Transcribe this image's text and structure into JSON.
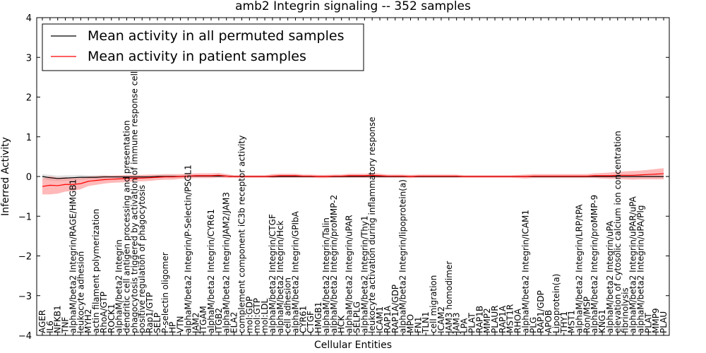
{
  "chart_data": {
    "type": "line",
    "title": "amb2 Integrin signaling -- 352 samples",
    "xlabel": "Cellular Entities",
    "ylabel": "Inferred Activity",
    "ylim": [
      -4,
      4
    ],
    "yticks": [
      "4",
      "3",
      "2",
      "1",
      "0",
      "−1",
      "−2",
      "−3",
      "−4"
    ],
    "grid": false,
    "legend_position": "top-left",
    "colors": {
      "permuted": "#000000",
      "patient": "#ff0000",
      "permuted_band": "#cccccc",
      "patient_band": "#ff8080"
    },
    "categories": [
      "AGER",
      "IL6",
      "NFKB1",
      "TNF",
      "alphaM/beta2 Integrin/RAGE/HMGB1",
      "leukocyte adhesion",
      "MYH2",
      "actin filament polymerization",
      "RhoA/GTP",
      "ROCK1",
      "alphaM/beta2 Integrin",
      "dendritic cell antigen processing and presentation",
      "phagocytosis triggered by activation of immune response cell surface",
      "positive regulation of phagocytosis",
      "Rap1/GTP",
      "SELP",
      "P-selectin oligomer",
      "HP",
      "VTN",
      "alphaM/beta2 Integrin/P-Selectin/PSGL1",
      "JAM2",
      "ITGAM",
      "alphaM/beta2 Integrin/CYR61",
      "ITGB2",
      "alphaM/beta2 Integrin/JAM2/JAM3",
      "ELA2",
      "complement component iC3b receptor activity",
      "mol:GDP",
      "mol:GTP",
      "mol:LDL",
      "alphaM/beta2 Integrin/CTGF",
      "alphaM/beta2 Integrin/Hck",
      "cell adhesion",
      "alphaM/beta2 Integrin/GPIbA",
      "CYR61",
      "CTGF",
      "HMGB1",
      "alphaM/beta2 Integrin/Talin",
      "alphaM/beta2 Integrin/proMMP-2",
      "HCK",
      "alphaM/beta2 Integrin/uPAR",
      "SELPLG",
      "alphaM/beta2 Integrin/Thy1",
      "leukocyte activation during inflammatory response",
      "ICAM1",
      "RAP1A",
      "RAP1A/GDP",
      "alphaM/beta2 Integrin/lipoprotein(a)",
      "MPO",
      "FN1",
      "TLN1",
      "cell migration",
      "ICAM2",
      "JAM3 homodimer",
      "JAM3",
      "LPA",
      "PLAT",
      "RAP1B",
      "MMP2",
      "PLAUR",
      "RAP1A",
      "MST1R",
      "RHOA",
      "alphaM/beta2 Integrin/ICAM1",
      "PLG",
      "RAP1/GDP",
      "APOB",
      "Lipoprotein(a)",
      "THY1",
      "MST1",
      "alphaM/beta2 Integrin/LRP/tPA",
      "Ron/MSP",
      "alphaM/beta2 Integrin/proMMP-9",
      "KNG1",
      "alphaM/beta2 Integrin/uPA",
      "elevation of cytosolic calcium ion concentration",
      "fibrinolysis",
      "alphaM/beta2 Integrin/uPAR/uPA",
      "alphaM/beta2 Integrin/uPA/Plg",
      "PLAT",
      "MMP9",
      "PLAU"
    ],
    "series": [
      {
        "name": "Mean activity in all permuted samples",
        "values": [
          0.0,
          -0.03,
          -0.05,
          -0.04,
          -0.03,
          -0.02,
          -0.02,
          -0.02,
          -0.01,
          -0.01,
          -0.01,
          -0.01,
          -0.01,
          -0.01,
          -0.01,
          0.0,
          0.0,
          0.0,
          0.0,
          0.01,
          0.01,
          0.01,
          0.01,
          0.01,
          0.01,
          0.0,
          0.0,
          0.0,
          0.0,
          0.0,
          0.0,
          0.0,
          0.0,
          0.0,
          0.0,
          0.0,
          0.0,
          0.0,
          0.0,
          0.0,
          0.0,
          0.0,
          0.0,
          0.0,
          0.0,
          0.0,
          0.0,
          0.0,
          0.0,
          0.0,
          0.0,
          0.0,
          0.0,
          0.0,
          0.0,
          0.0,
          0.0,
          0.0,
          0.0,
          0.0,
          0.0,
          0.0,
          0.0,
          0.0,
          0.0,
          0.0,
          0.0,
          0.0,
          0.0,
          0.0,
          0.0,
          0.0,
          0.0,
          0.0,
          0.0,
          0.0,
          0.0,
          0.0,
          0.0,
          0.0,
          0.0,
          0.0
        ],
        "std": [
          0.06,
          0.07,
          0.07,
          0.07,
          0.06,
          0.06,
          0.05,
          0.05,
          0.05,
          0.04,
          0.04,
          0.04,
          0.04,
          0.04,
          0.04,
          0.03,
          0.03,
          0.03,
          0.03,
          0.03,
          0.03,
          0.03,
          0.03,
          0.03,
          0.03,
          0.02,
          0.02,
          0.02,
          0.02,
          0.02,
          0.02,
          0.02,
          0.02,
          0.02,
          0.02,
          0.02,
          0.02,
          0.02,
          0.02,
          0.02,
          0.02,
          0.02,
          0.02,
          0.02,
          0.02,
          0.02,
          0.02,
          0.02,
          0.02,
          0.02,
          0.02,
          0.02,
          0.02,
          0.02,
          0.02,
          0.02,
          0.02,
          0.02,
          0.02,
          0.02,
          0.02,
          0.02,
          0.02,
          0.02,
          0.02,
          0.02,
          0.02,
          0.02,
          0.02,
          0.02,
          0.02,
          0.02,
          0.02,
          0.02,
          0.02,
          0.02,
          0.02,
          0.02,
          0.02,
          0.02,
          0.02,
          0.02
        ]
      },
      {
        "name": "Mean activity in patient samples",
        "values": [
          -0.25,
          -0.22,
          -0.23,
          -0.2,
          -0.2,
          -0.18,
          -0.12,
          -0.1,
          -0.08,
          -0.07,
          -0.06,
          -0.05,
          -0.04,
          -0.04,
          -0.03,
          -0.02,
          -0.01,
          -0.01,
          0.0,
          0.01,
          0.02,
          0.02,
          0.02,
          0.03,
          0.01,
          0.0,
          0.0,
          0.0,
          0.0,
          0.0,
          0.01,
          0.02,
          0.02,
          0.02,
          0.01,
          0.01,
          0.0,
          0.0,
          0.01,
          0.01,
          0.02,
          0.02,
          0.02,
          0.03,
          0.02,
          0.01,
          0.01,
          0.01,
          0.0,
          0.01,
          0.01,
          0.01,
          0.01,
          0.01,
          0.01,
          0.0,
          0.0,
          0.0,
          0.0,
          0.0,
          0.0,
          0.0,
          0.0,
          0.0,
          0.01,
          0.01,
          0.01,
          0.01,
          0.01,
          0.01,
          0.01,
          0.01,
          0.02,
          0.02,
          0.02,
          0.03,
          0.03,
          0.03,
          0.04,
          0.05,
          0.06,
          0.07
        ],
        "std": [
          0.2,
          0.23,
          0.2,
          0.18,
          0.16,
          0.14,
          0.12,
          0.11,
          0.1,
          0.09,
          0.09,
          0.09,
          0.08,
          0.08,
          0.08,
          0.07,
          0.07,
          0.07,
          0.06,
          0.06,
          0.06,
          0.06,
          0.06,
          0.06,
          0.05,
          0.03,
          0.03,
          0.03,
          0.03,
          0.03,
          0.05,
          0.05,
          0.05,
          0.05,
          0.04,
          0.04,
          0.04,
          0.04,
          0.04,
          0.04,
          0.05,
          0.05,
          0.05,
          0.06,
          0.05,
          0.04,
          0.04,
          0.04,
          0.04,
          0.04,
          0.04,
          0.04,
          0.04,
          0.04,
          0.04,
          0.03,
          0.03,
          0.03,
          0.03,
          0.03,
          0.03,
          0.03,
          0.04,
          0.05,
          0.05,
          0.05,
          0.05,
          0.05,
          0.05,
          0.05,
          0.05,
          0.05,
          0.06,
          0.07,
          0.08,
          0.09,
          0.1,
          0.11,
          0.11,
          0.12,
          0.13,
          0.14
        ]
      }
    ]
  }
}
